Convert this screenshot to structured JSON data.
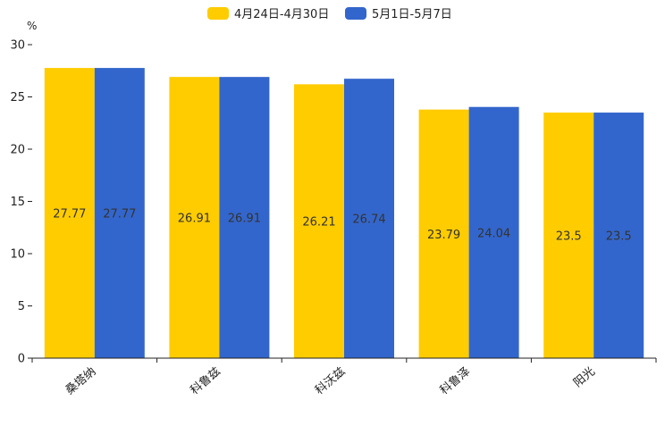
{
  "chart_data": {
    "type": "bar",
    "title": "",
    "ylabel": "%",
    "xlabel": "",
    "ylim": [
      0,
      30
    ],
    "yticks": [
      0,
      5,
      10,
      15,
      20,
      25,
      30
    ],
    "categories": [
      "桑塔纳",
      "科鲁兹",
      "科沃兹",
      "科鲁泽",
      "阳光"
    ],
    "series": [
      {
        "name": "4月24日-4月30日",
        "color": "#FFCC00",
        "values": [
          27.77,
          26.91,
          26.21,
          23.79,
          23.5
        ]
      },
      {
        "name": "5月1日-5月7日",
        "color": "#3366CC",
        "values": [
          27.77,
          26.91,
          26.74,
          24.04,
          23.5
        ]
      }
    ],
    "legend_position": "top-center",
    "grid": false
  }
}
